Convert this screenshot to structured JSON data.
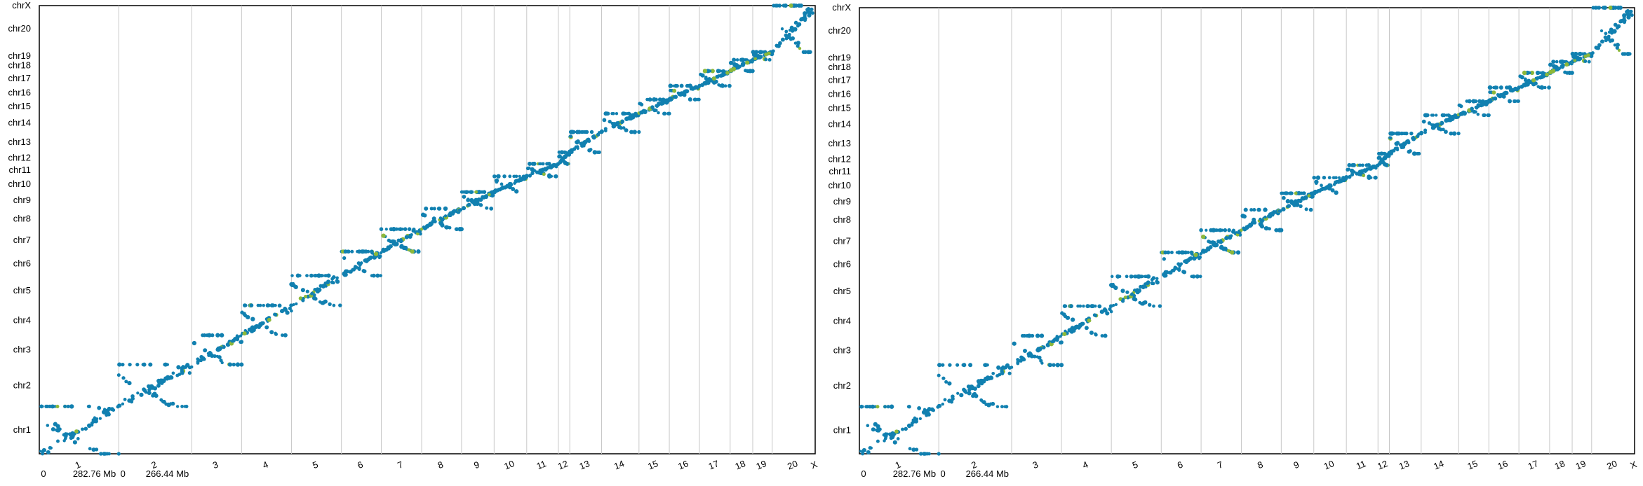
{
  "chart_data": [
    {
      "type": "scatter",
      "title": "",
      "xlabel": "",
      "ylabel": "",
      "grid": "vertical chromosome boundaries",
      "x_axis": {
        "categories": [
          "1",
          "2",
          "3",
          "4",
          "5",
          "6",
          "7",
          "8",
          "9",
          "10",
          "11",
          "12",
          "13",
          "14",
          "15",
          "16",
          "17",
          "18",
          "19",
          "20",
          "X"
        ],
        "start_labels": [
          {
            "chromosome": "1",
            "start": "0",
            "end": "282.76 Mb"
          },
          {
            "chromosome": "2",
            "start": "0",
            "end": "266.44 Mb"
          }
        ]
      },
      "y_axis": {
        "categories": [
          "chr1",
          "chr2",
          "chr3",
          "chr4",
          "chr5",
          "chr6",
          "chr7",
          "chr8",
          "chr9",
          "chr10",
          "chr11",
          "chr12",
          "chr13",
          "chr14",
          "chr15",
          "chr16",
          "chr17",
          "chr18",
          "chr19",
          "chr20",
          "chrX"
        ]
      },
      "colors": {
        "main": "#1180b0",
        "highlight": "#8cb83a"
      },
      "description_of_points": "dense diagonal band of points matching chromosome-to-chromosome synteny"
    },
    {
      "type": "scatter",
      "title": "",
      "xlabel": "",
      "ylabel": "",
      "grid": "vertical chromosome boundaries",
      "x_axis": {
        "categories": [
          "1",
          "2",
          "3",
          "4",
          "5",
          "6",
          "7",
          "8",
          "9",
          "10",
          "11",
          "12",
          "13",
          "14",
          "15",
          "16",
          "17",
          "18",
          "19",
          "20",
          "X"
        ],
        "start_labels": [
          {
            "chromosome": "1",
            "start": "0",
            "end": "282.76 Mb"
          },
          {
            "chromosome": "2",
            "start": "0",
            "end": "266.44 Mb"
          }
        ]
      },
      "y_axis": {
        "categories": [
          "chr1",
          "chr2",
          "chr3",
          "chr4",
          "chr5",
          "chr6",
          "chr7",
          "chr8",
          "chr9",
          "chr10",
          "chr11",
          "chr12",
          "chr13",
          "chr14",
          "chr15",
          "chr16",
          "chr17",
          "chr18",
          "chr19",
          "chr20",
          "chrX"
        ]
      },
      "colors": {
        "main": "#1180b0",
        "highlight": "#8cb83a"
      }
    }
  ]
}
